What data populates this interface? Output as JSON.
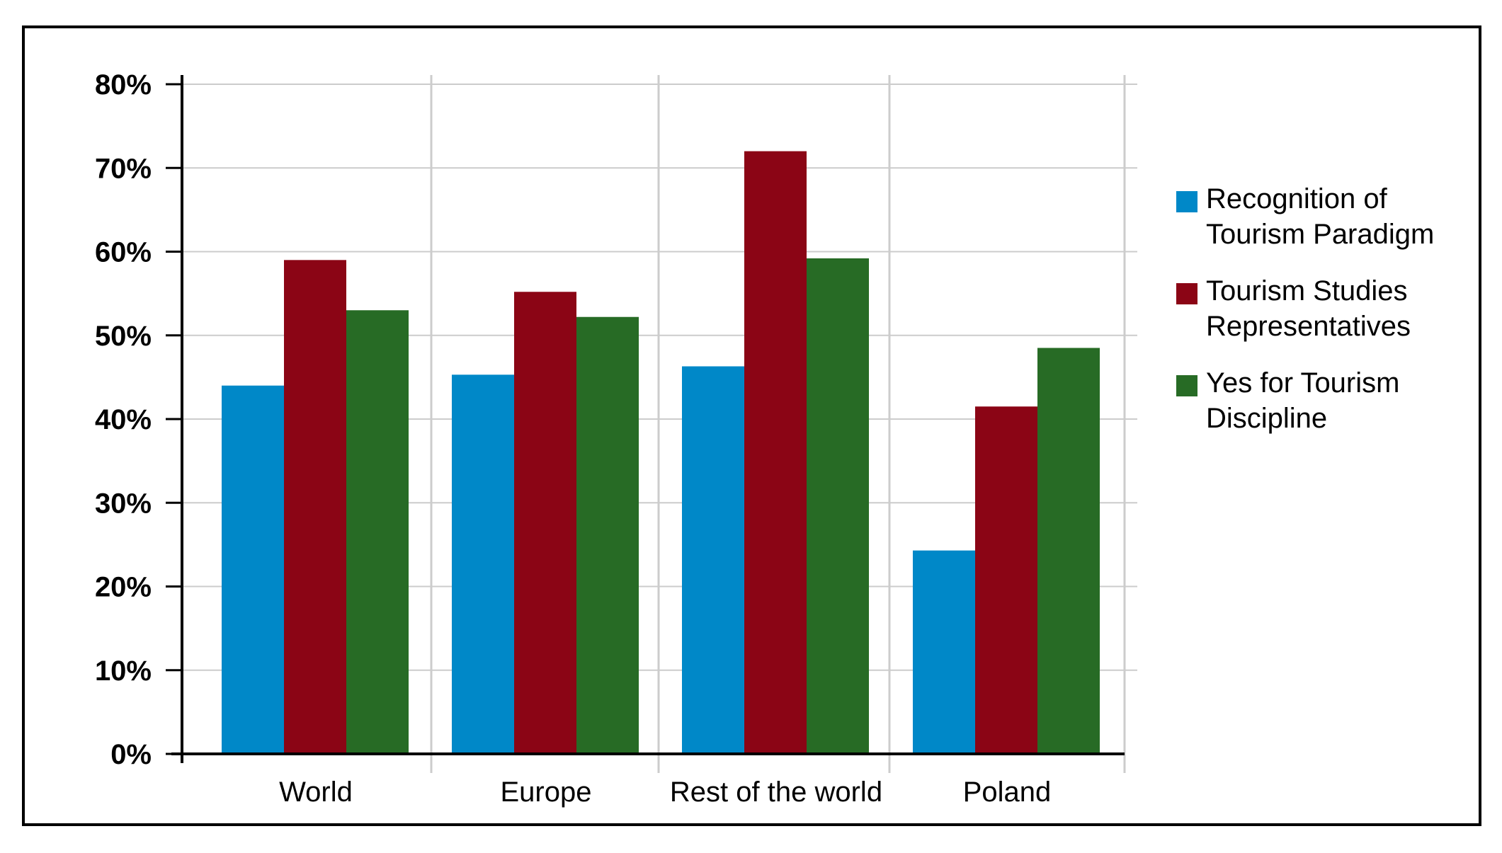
{
  "chart_data": {
    "type": "bar",
    "categories": [
      "World",
      "Europe",
      "Rest of the world",
      "Poland"
    ],
    "series": [
      {
        "name": "Recognition of Tourism Paradigm",
        "color": "#0088c8",
        "values": [
          44,
          45.3,
          46.3,
          24.3
        ]
      },
      {
        "name": "Tourism Studies Representatives",
        "color": "#8b0515",
        "values": [
          59,
          55.2,
          72,
          41.5
        ]
      },
      {
        "name": "Yes for Tourism Discipline",
        "color": "#276b25",
        "values": [
          53,
          52.2,
          59.2,
          48.5
        ]
      }
    ],
    "title": "",
    "xlabel": "",
    "ylabel": "",
    "ylim": [
      0,
      80
    ],
    "yticks": [
      "0%",
      "10%",
      "20%",
      "30%",
      "40%",
      "50%",
      "60%",
      "70%",
      "80%"
    ],
    "grid": true,
    "legend_position": "right"
  }
}
